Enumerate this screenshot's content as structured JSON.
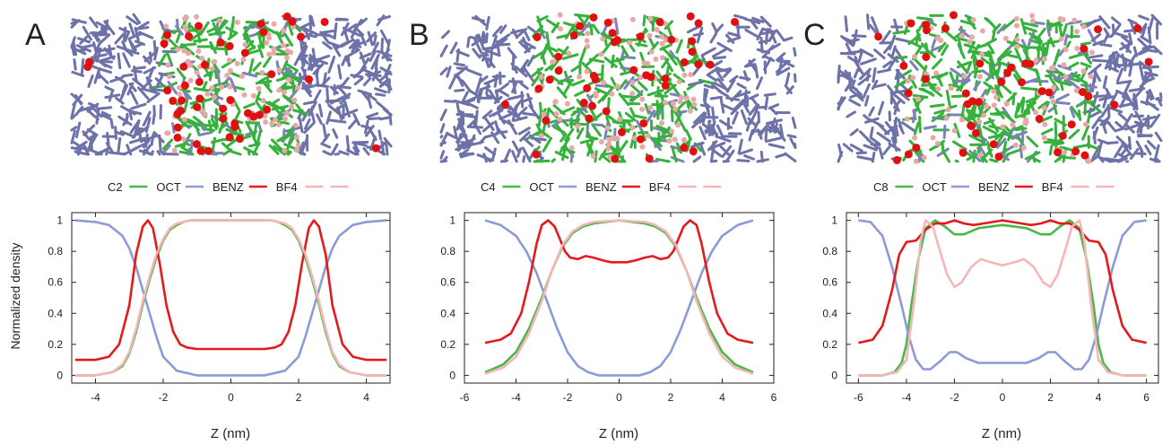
{
  "figure": {
    "ylabel": "Normalized density",
    "xlabel": "Z (nm)"
  },
  "chart_data": [
    {
      "panel_letter": "A",
      "type": "line",
      "legend_placement": "top",
      "legend": [
        "C2",
        "OCT",
        "BENZ",
        "BF4"
      ],
      "xlabel": "Z (nm)",
      "ylabel": "Normalized density",
      "xlim": [
        -4.7,
        4.7
      ],
      "ylim": [
        -0.05,
        1.05
      ],
      "xticks": [
        -4,
        -2,
        0,
        2,
        4
      ],
      "yticks": [
        0,
        0.2,
        0.4,
        0.6,
        0.8,
        1
      ],
      "grid": false,
      "series": [
        {
          "name": "C2",
          "color": "#48b848",
          "x": [
            -4.6,
            -4.0,
            -3.5,
            -3.2,
            -3.0,
            -2.8,
            -2.6,
            -2.4,
            -2.2,
            -2.0,
            -1.8,
            -1.6,
            -1.4,
            -1.2,
            -1.0,
            0,
            1.0,
            1.2,
            1.4,
            1.6,
            1.8,
            2.0,
            2.2,
            2.4,
            2.6,
            2.8,
            3.0,
            3.2,
            3.5,
            4.0,
            4.6
          ],
          "y": [
            0.0,
            0.0,
            0.02,
            0.06,
            0.14,
            0.28,
            0.46,
            0.62,
            0.76,
            0.87,
            0.94,
            0.97,
            0.99,
            1.0,
            1.0,
            1.0,
            1.0,
            1.0,
            0.99,
            0.97,
            0.94,
            0.87,
            0.76,
            0.62,
            0.46,
            0.28,
            0.14,
            0.06,
            0.02,
            0.0,
            0.0
          ]
        },
        {
          "name": "OCT",
          "color": "#8c9bd6",
          "x": [
            -4.6,
            -4.0,
            -3.6,
            -3.2,
            -3.0,
            -2.8,
            -2.6,
            -2.4,
            -2.2,
            -2.0,
            -1.6,
            -1.0,
            0,
            1.0,
            1.6,
            2.0,
            2.2,
            2.4,
            2.6,
            2.8,
            3.0,
            3.2,
            3.6,
            4.0,
            4.6
          ],
          "y": [
            1.0,
            0.99,
            0.97,
            0.9,
            0.82,
            0.7,
            0.55,
            0.4,
            0.25,
            0.12,
            0.03,
            0.0,
            0.0,
            0.0,
            0.03,
            0.12,
            0.25,
            0.4,
            0.55,
            0.7,
            0.82,
            0.9,
            0.97,
            0.99,
            1.0
          ]
        },
        {
          "name": "BENZ",
          "color": "#e31a1c",
          "x": [
            -4.6,
            -4.0,
            -3.6,
            -3.3,
            -3.0,
            -2.8,
            -2.6,
            -2.45,
            -2.3,
            -2.1,
            -1.9,
            -1.7,
            -1.5,
            -1.3,
            -1.0,
            0,
            1.0,
            1.3,
            1.5,
            1.7,
            1.9,
            2.1,
            2.3,
            2.45,
            2.6,
            2.8,
            3.0,
            3.3,
            3.6,
            4.0,
            4.6
          ],
          "y": [
            0.1,
            0.1,
            0.12,
            0.2,
            0.45,
            0.78,
            0.96,
            1.0,
            0.95,
            0.72,
            0.45,
            0.28,
            0.2,
            0.18,
            0.17,
            0.17,
            0.17,
            0.18,
            0.2,
            0.28,
            0.45,
            0.72,
            0.95,
            1.0,
            0.96,
            0.78,
            0.45,
            0.2,
            0.12,
            0.1,
            0.1
          ]
        },
        {
          "name": "",
          "color": "#f4b6b6",
          "x": [
            -4.6,
            -4.0,
            -3.5,
            -3.2,
            -3.0,
            -2.8,
            -2.6,
            -2.4,
            -2.2,
            -2.0,
            -1.8,
            -1.6,
            -1.4,
            -1.2,
            -1.0,
            0,
            1.0,
            1.2,
            1.4,
            1.6,
            1.8,
            2.0,
            2.2,
            2.4,
            2.6,
            2.8,
            3.0,
            3.2,
            3.5,
            4.0,
            4.6
          ],
          "y": [
            0.0,
            0.0,
            0.02,
            0.07,
            0.15,
            0.3,
            0.48,
            0.64,
            0.78,
            0.88,
            0.95,
            0.98,
            0.99,
            1.0,
            1.0,
            1.0,
            1.0,
            1.0,
            0.99,
            0.98,
            0.95,
            0.88,
            0.78,
            0.64,
            0.48,
            0.3,
            0.15,
            0.07,
            0.02,
            0.0,
            0.0
          ]
        }
      ]
    },
    {
      "panel_letter": "B",
      "type": "line",
      "legend_placement": "top",
      "legend": [
        "C4",
        "OCT",
        "BENZ",
        "BF4"
      ],
      "xlabel": "Z (nm)",
      "ylabel": "",
      "xlim": [
        -6,
        6
      ],
      "ylim": [
        -0.05,
        1.05
      ],
      "xticks": [
        -6,
        -4,
        -2,
        0,
        2,
        4,
        6
      ],
      "yticks": [
        0,
        0.2,
        0.4,
        0.6,
        0.8,
        1
      ],
      "grid": false,
      "series": [
        {
          "name": "C4",
          "color": "#48b848",
          "x": [
            -5.2,
            -4.5,
            -4.0,
            -3.5,
            -3.0,
            -2.6,
            -2.2,
            -1.8,
            -1.4,
            -1.0,
            0,
            1.0,
            1.4,
            1.8,
            2.2,
            2.6,
            3.0,
            3.5,
            4.0,
            4.5,
            5.2
          ],
          "y": [
            0.02,
            0.07,
            0.15,
            0.3,
            0.5,
            0.68,
            0.83,
            0.92,
            0.96,
            0.98,
            1.0,
            0.98,
            0.96,
            0.92,
            0.83,
            0.68,
            0.5,
            0.3,
            0.15,
            0.07,
            0.02
          ]
        },
        {
          "name": "OCT",
          "color": "#8c9bd6",
          "x": [
            -5.2,
            -4.6,
            -4.0,
            -3.6,
            -3.2,
            -2.8,
            -2.4,
            -2.0,
            -1.6,
            -1.2,
            -0.8,
            0,
            0.8,
            1.2,
            1.6,
            2.0,
            2.4,
            2.8,
            3.2,
            3.6,
            4.0,
            4.6,
            5.2
          ],
          "y": [
            1.0,
            0.97,
            0.9,
            0.8,
            0.66,
            0.48,
            0.3,
            0.15,
            0.06,
            0.02,
            0.0,
            0.0,
            0.0,
            0.02,
            0.06,
            0.15,
            0.3,
            0.48,
            0.66,
            0.8,
            0.9,
            0.97,
            1.0
          ]
        },
        {
          "name": "BENZ",
          "color": "#e31a1c",
          "x": [
            -5.2,
            -4.6,
            -4.2,
            -3.8,
            -3.5,
            -3.2,
            -3.0,
            -2.75,
            -2.5,
            -2.3,
            -2.1,
            -1.9,
            -1.6,
            -1.3,
            -1.0,
            -0.6,
            -0.3,
            0,
            0.3,
            0.6,
            1.0,
            1.3,
            1.6,
            1.9,
            2.1,
            2.3,
            2.5,
            2.75,
            3.0,
            3.2,
            3.5,
            3.8,
            4.2,
            4.6,
            5.2
          ],
          "y": [
            0.21,
            0.23,
            0.27,
            0.4,
            0.6,
            0.85,
            0.97,
            1.0,
            0.96,
            0.88,
            0.8,
            0.76,
            0.75,
            0.77,
            0.76,
            0.74,
            0.73,
            0.73,
            0.73,
            0.74,
            0.76,
            0.77,
            0.75,
            0.76,
            0.8,
            0.88,
            0.96,
            1.0,
            0.97,
            0.85,
            0.6,
            0.4,
            0.27,
            0.23,
            0.21
          ]
        },
        {
          "name": "",
          "color": "#f4b6b6",
          "x": [
            -5.2,
            -4.5,
            -4.0,
            -3.5,
            -3.0,
            -2.6,
            -2.2,
            -1.8,
            -1.4,
            -1.0,
            0,
            1.0,
            1.4,
            1.8,
            2.2,
            2.6,
            3.0,
            3.5,
            4.0,
            4.5,
            5.2
          ],
          "y": [
            0.01,
            0.05,
            0.12,
            0.27,
            0.48,
            0.68,
            0.84,
            0.93,
            0.97,
            0.99,
            1.0,
            0.99,
            0.97,
            0.93,
            0.84,
            0.68,
            0.48,
            0.27,
            0.12,
            0.05,
            0.01
          ]
        }
      ]
    },
    {
      "panel_letter": "C",
      "type": "line",
      "legend_placement": "top",
      "legend": [
        "C8",
        "OCT",
        "BENZ",
        "BF4"
      ],
      "xlabel": "Z (nm)",
      "ylabel": "",
      "xlim": [
        -6.5,
        6.5
      ],
      "ylim": [
        -0.05,
        1.05
      ],
      "xticks": [
        -6,
        -4,
        -2,
        0,
        2,
        4,
        6
      ],
      "yticks": [
        0,
        0.2,
        0.4,
        0.6,
        0.8,
        1
      ],
      "grid": false,
      "series": [
        {
          "name": "C8",
          "color": "#48b848",
          "x": [
            -6.0,
            -5.0,
            -4.5,
            -4.2,
            -4.0,
            -3.8,
            -3.5,
            -3.2,
            -2.8,
            -2.4,
            -2.0,
            -1.6,
            -1.0,
            0,
            1.0,
            1.6,
            2.0,
            2.4,
            2.8,
            3.2,
            3.5,
            3.8,
            4.0,
            4.2,
            4.5,
            5.0,
            6.0
          ],
          "y": [
            0.0,
            0.0,
            0.02,
            0.08,
            0.2,
            0.45,
            0.75,
            0.95,
            1.0,
            0.96,
            0.91,
            0.91,
            0.95,
            0.97,
            0.95,
            0.91,
            0.91,
            0.96,
            1.0,
            0.95,
            0.75,
            0.45,
            0.2,
            0.08,
            0.02,
            0.0,
            0.0
          ]
        },
        {
          "name": "OCT",
          "color": "#8c9bd6",
          "x": [
            -6.0,
            -5.5,
            -5.0,
            -4.6,
            -4.2,
            -3.9,
            -3.6,
            -3.3,
            -3.0,
            -2.6,
            -2.2,
            -1.9,
            -1.5,
            -1.0,
            -0.5,
            0,
            0.5,
            1.0,
            1.5,
            1.9,
            2.2,
            2.6,
            3.0,
            3.3,
            3.6,
            3.9,
            4.2,
            4.6,
            5.0,
            5.5,
            6.0
          ],
          "y": [
            1.0,
            0.99,
            0.9,
            0.7,
            0.45,
            0.25,
            0.1,
            0.04,
            0.04,
            0.09,
            0.15,
            0.15,
            0.11,
            0.08,
            0.08,
            0.08,
            0.08,
            0.08,
            0.11,
            0.15,
            0.15,
            0.09,
            0.04,
            0.04,
            0.1,
            0.25,
            0.45,
            0.7,
            0.9,
            0.99,
            1.0
          ]
        },
        {
          "name": "BENZ",
          "color": "#e31a1c",
          "x": [
            -6.0,
            -5.4,
            -5.0,
            -4.6,
            -4.3,
            -4.0,
            -3.6,
            -3.2,
            -2.8,
            -2.4,
            -2.0,
            -1.6,
            -1.2,
            -0.8,
            -0.4,
            0,
            0.4,
            0.8,
            1.2,
            1.6,
            2.0,
            2.4,
            2.8,
            3.2,
            3.6,
            4.0,
            4.3,
            4.6,
            5.0,
            5.4,
            6.0
          ],
          "y": [
            0.21,
            0.23,
            0.32,
            0.55,
            0.78,
            0.86,
            0.87,
            0.94,
            0.98,
            0.98,
            1.0,
            0.98,
            0.97,
            0.98,
            0.99,
            1.0,
            0.99,
            0.98,
            0.97,
            0.98,
            1.0,
            0.98,
            0.98,
            0.94,
            0.87,
            0.86,
            0.78,
            0.55,
            0.32,
            0.23,
            0.21
          ]
        },
        {
          "name": "",
          "color": "#f4b6b6",
          "x": [
            -6.0,
            -5.0,
            -4.4,
            -4.0,
            -3.7,
            -3.4,
            -3.2,
            -2.9,
            -2.6,
            -2.3,
            -2.0,
            -1.7,
            -1.3,
            -0.9,
            -0.5,
            0,
            0.5,
            0.9,
            1.3,
            1.7,
            2.0,
            2.3,
            2.6,
            2.9,
            3.2,
            3.4,
            3.7,
            4.0,
            4.4,
            5.0,
            6.0
          ],
          "y": [
            0.0,
            0.0,
            0.02,
            0.1,
            0.45,
            0.88,
            1.0,
            0.96,
            0.8,
            0.65,
            0.57,
            0.6,
            0.7,
            0.75,
            0.73,
            0.71,
            0.73,
            0.75,
            0.7,
            0.6,
            0.57,
            0.65,
            0.8,
            0.96,
            1.0,
            0.88,
            0.45,
            0.1,
            0.02,
            0.0,
            0.0
          ]
        }
      ]
    }
  ]
}
